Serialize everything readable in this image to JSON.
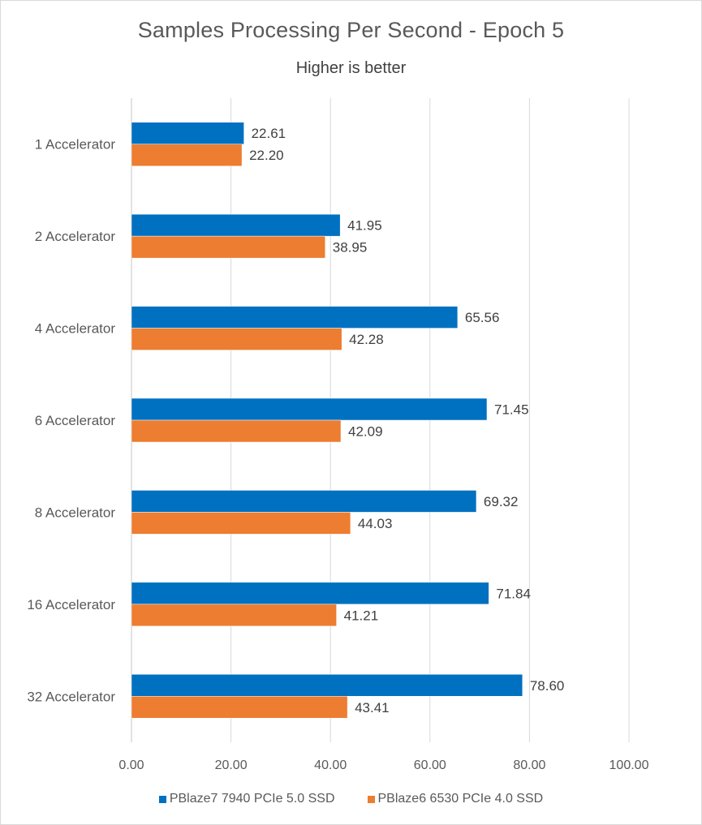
{
  "chart_data": {
    "type": "bar",
    "orientation": "horizontal",
    "title": "Samples Processing Per Second - Epoch 5",
    "subtitle": "Higher is better",
    "xlabel": "",
    "ylabel": "",
    "categories": [
      "1 Accelerator",
      "2 Accelerator",
      "4 Accelerator",
      "6 Accelerator",
      "8 Accelerator",
      "16 Accelerator",
      "32 Accelerator"
    ],
    "series": [
      {
        "name": "PBlaze7 7940 PCIe 5.0 SSD",
        "color": "#0070C0",
        "values": [
          22.61,
          41.95,
          65.56,
          71.45,
          69.32,
          71.84,
          78.6
        ],
        "labels": [
          "22.61",
          "41.95",
          "65.56",
          "71.45",
          "69.32",
          "71.84",
          "78.60"
        ]
      },
      {
        "name": "PBlaze6 6530 PCIe 4.0 SSD",
        "color": "#ED7D31",
        "values": [
          22.2,
          38.95,
          42.28,
          42.09,
          44.03,
          41.21,
          43.41
        ],
        "labels": [
          "22.20",
          "38.95",
          "42.28",
          "42.09",
          "44.03",
          "41.21",
          "43.41"
        ]
      }
    ],
    "xlim": [
      0,
      100
    ],
    "xticks": [
      0,
      20,
      40,
      60,
      80,
      100
    ],
    "xtick_labels": [
      "0.00",
      "20.00",
      "40.00",
      "60.00",
      "80.00",
      "100.00"
    ],
    "grid": "vertical",
    "legend_position": "bottom"
  }
}
